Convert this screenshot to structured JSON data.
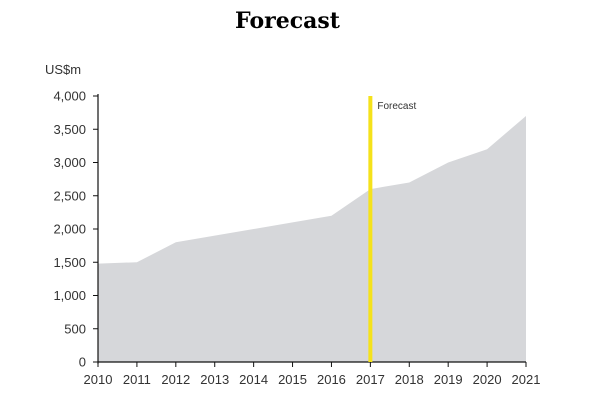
{
  "chart_data": {
    "type": "area",
    "title": "Forecast",
    "ylabel": "US$m",
    "xlabel": "",
    "x": [
      2010,
      2011,
      2012,
      2013,
      2014,
      2015,
      2016,
      2017,
      2018,
      2019,
      2020,
      2021
    ],
    "series": [
      {
        "values": [
          1480,
          1500,
          1800,
          1900,
          2000,
          2100,
          2200,
          2600,
          2700,
          3000,
          3200,
          3700
        ]
      }
    ],
    "ylim": [
      0,
      4000
    ],
    "yticks": [
      0,
      500,
      1000,
      1500,
      2000,
      2500,
      3000,
      3500,
      4000
    ],
    "ytick_labels": [
      "0",
      "500",
      "1,000",
      "1,500",
      "2,000",
      "2,500",
      "3,000",
      "3,500",
      "4,000"
    ],
    "xtick_labels": [
      "2010",
      "2011",
      "2012",
      "2013",
      "2014",
      "2015",
      "2016",
      "2017",
      "2018",
      "2019",
      "2020",
      "2021"
    ],
    "annotations": [
      {
        "type": "vertical_line",
        "x": 2017,
        "label": "Forecast"
      }
    ],
    "grid": false,
    "colors": {
      "area": "#d6d7da",
      "forecast_line": "#f5e21b",
      "axis": "#111111"
    }
  }
}
